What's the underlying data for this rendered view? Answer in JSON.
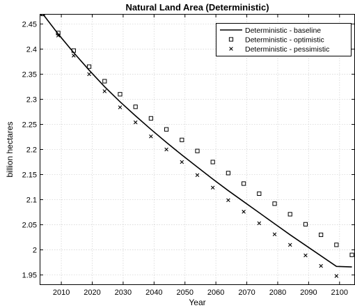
{
  "chart_data": {
    "type": "line",
    "title": "Natural Land Area (Deterministic)",
    "xlabel": "Year",
    "ylabel": "billion hectares",
    "xlim": [
      2003,
      2105
    ],
    "ylim": [
      1.93,
      2.47
    ],
    "xticks": [
      2010,
      2020,
      2030,
      2040,
      2050,
      2060,
      2070,
      2080,
      2090,
      2100
    ],
    "yticks": [
      1.95,
      2.0,
      2.05,
      2.1,
      2.15,
      2.2,
      2.25,
      2.3,
      2.35,
      2.4,
      2.45
    ],
    "ytick_labels": [
      "1.95",
      "2",
      "2.05",
      "2.1",
      "2.15",
      "2.2",
      "2.25",
      "2.3",
      "2.35",
      "2.4",
      "2.45"
    ],
    "grid": true,
    "legend_position": "top-right",
    "series": [
      {
        "name": "Deterministic - baseline",
        "marker": "line",
        "x": [
          2004,
          2009,
          2014,
          2019,
          2024,
          2029,
          2034,
          2039,
          2044,
          2049,
          2054,
          2059,
          2064,
          2069,
          2074,
          2079,
          2084,
          2089,
          2094,
          2099,
          2104
        ],
        "y": [
          2.47,
          2.43,
          2.393,
          2.358,
          2.325,
          2.295,
          2.267,
          2.24,
          2.214,
          2.189,
          2.165,
          2.141,
          2.118,
          2.096,
          2.074,
          2.052,
          2.03,
          2.009,
          1.988,
          1.967,
          1.966
        ]
      },
      {
        "name": "Deterministic - optimistic",
        "marker": "square",
        "x": [
          2004,
          2009,
          2014,
          2019,
          2024,
          2029,
          2034,
          2039,
          2044,
          2049,
          2054,
          2059,
          2064,
          2069,
          2074,
          2079,
          2084,
          2089,
          2094,
          2099,
          2104
        ],
        "y": [
          2.47,
          2.432,
          2.397,
          2.365,
          2.336,
          2.31,
          2.285,
          2.262,
          2.24,
          2.219,
          2.197,
          2.175,
          2.153,
          2.132,
          2.112,
          2.092,
          2.071,
          2.051,
          2.03,
          2.01,
          1.99
        ]
      },
      {
        "name": "Deterministic - pessimistic",
        "marker": "x",
        "x": [
          2004,
          2009,
          2014,
          2019,
          2024,
          2029,
          2034,
          2039,
          2044,
          2049,
          2054,
          2059,
          2064,
          2069,
          2074,
          2079,
          2084,
          2089,
          2094,
          2099,
          2104
        ],
        "y": [
          2.47,
          2.427,
          2.387,
          2.35,
          2.316,
          2.284,
          2.254,
          2.226,
          2.2,
          2.175,
          2.149,
          2.124,
          2.099,
          2.076,
          2.053,
          2.031,
          2.01,
          1.989,
          1.968,
          1.948,
          1.928
        ]
      }
    ]
  }
}
